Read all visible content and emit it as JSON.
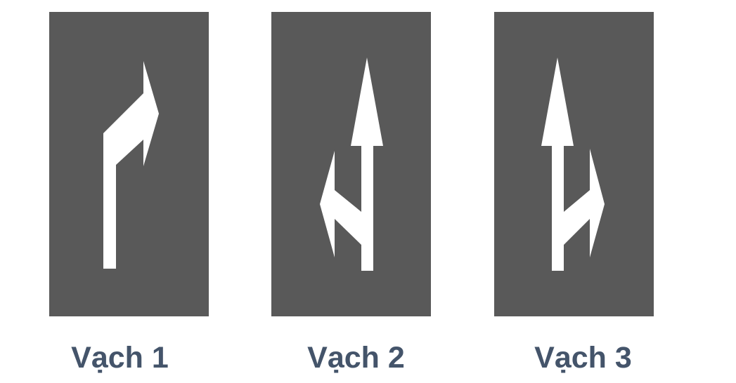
{
  "markings": [
    {
      "label": "Vạch 1",
      "icon": "straight-then-right-arrow-icon"
    },
    {
      "label": "Vạch 2",
      "icon": "straight-or-left-arrow-icon"
    },
    {
      "label": "Vạch 3",
      "icon": "straight-or-right-arrow-icon"
    }
  ],
  "colors": {
    "road": "#595959",
    "arrow": "#ffffff",
    "caption": "#44546a",
    "background": "#ffffff"
  }
}
